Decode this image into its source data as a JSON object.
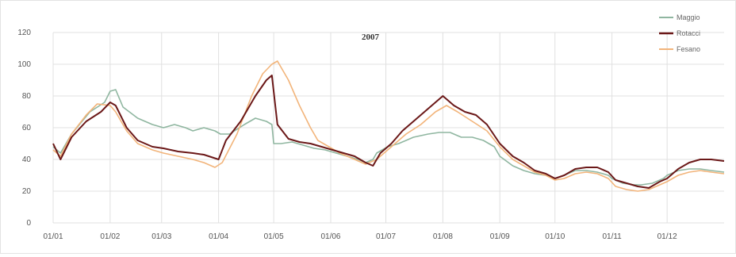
{
  "chart_data": {
    "type": "line",
    "title": "2007",
    "xlabel": "",
    "ylabel": "",
    "ylim": [
      0,
      120
    ],
    "yticks": [
      0,
      20,
      40,
      60,
      80,
      100,
      120
    ],
    "xlim": [
      0,
      365
    ],
    "xticks": [
      {
        "label": "01/01",
        "day": 0
      },
      {
        "label": "01/02",
        "day": 31
      },
      {
        "label": "01/03",
        "day": 59
      },
      {
        "label": "01/04",
        "day": 90
      },
      {
        "label": "01/05",
        "day": 120
      },
      {
        "label": "01/06",
        "day": 151
      },
      {
        "label": "01/07",
        "day": 181
      },
      {
        "label": "01/08",
        "day": 212
      },
      {
        "label": "01/09",
        "day": 243
      },
      {
        "label": "01/10",
        "day": 273
      },
      {
        "label": "01/11",
        "day": 304
      },
      {
        "label": "01/12",
        "day": 334
      }
    ],
    "grid": true,
    "legend_position": "top-right",
    "series": [
      {
        "name": "Maggio",
        "color": "#8fb6a0",
        "points": [
          [
            0,
            48
          ],
          [
            4,
            44
          ],
          [
            10,
            56
          ],
          [
            20,
            70
          ],
          [
            28,
            76
          ],
          [
            31,
            83
          ],
          [
            34,
            84
          ],
          [
            38,
            73
          ],
          [
            46,
            66
          ],
          [
            54,
            62
          ],
          [
            60,
            60
          ],
          [
            66,
            62
          ],
          [
            72,
            60
          ],
          [
            76,
            58
          ],
          [
            82,
            60
          ],
          [
            88,
            58
          ],
          [
            91,
            56
          ],
          [
            96,
            56
          ],
          [
            104,
            62
          ],
          [
            110,
            66
          ],
          [
            116,
            64
          ],
          [
            119,
            62
          ],
          [
            120,
            50
          ],
          [
            124,
            50
          ],
          [
            130,
            51
          ],
          [
            136,
            49
          ],
          [
            142,
            47
          ],
          [
            148,
            46
          ],
          [
            154,
            44
          ],
          [
            160,
            42
          ],
          [
            166,
            40
          ],
          [
            170,
            38
          ],
          [
            174,
            40
          ],
          [
            176,
            44
          ],
          [
            182,
            48
          ],
          [
            188,
            50
          ],
          [
            196,
            54
          ],
          [
            204,
            56
          ],
          [
            210,
            57
          ],
          [
            216,
            57
          ],
          [
            222,
            54
          ],
          [
            228,
            54
          ],
          [
            234,
            52
          ],
          [
            240,
            48
          ],
          [
            243,
            42
          ],
          [
            250,
            36
          ],
          [
            256,
            33
          ],
          [
            262,
            31
          ],
          [
            268,
            30
          ],
          [
            273,
            28
          ],
          [
            278,
            30
          ],
          [
            284,
            33
          ],
          [
            290,
            33
          ],
          [
            296,
            32
          ],
          [
            302,
            30
          ],
          [
            304,
            28
          ],
          [
            310,
            25
          ],
          [
            316,
            24
          ],
          [
            320,
            24
          ],
          [
            326,
            25
          ],
          [
            332,
            28
          ],
          [
            334,
            30
          ],
          [
            340,
            33
          ],
          [
            346,
            34
          ],
          [
            352,
            34
          ],
          [
            358,
            33
          ],
          [
            365,
            32
          ]
        ]
      },
      {
        "name": "Rotacci",
        "color": "#6b1818",
        "points": [
          [
            0,
            50
          ],
          [
            4,
            40
          ],
          [
            10,
            54
          ],
          [
            18,
            64
          ],
          [
            26,
            70
          ],
          [
            31,
            76
          ],
          [
            34,
            74
          ],
          [
            40,
            60
          ],
          [
            46,
            52
          ],
          [
            54,
            48
          ],
          [
            60,
            47
          ],
          [
            68,
            45
          ],
          [
            76,
            44
          ],
          [
            82,
            43
          ],
          [
            90,
            40
          ],
          [
            94,
            52
          ],
          [
            102,
            64
          ],
          [
            110,
            80
          ],
          [
            116,
            90
          ],
          [
            119,
            93
          ],
          [
            122,
            62
          ],
          [
            128,
            53
          ],
          [
            134,
            51
          ],
          [
            140,
            50
          ],
          [
            146,
            48
          ],
          [
            152,
            46
          ],
          [
            158,
            44
          ],
          [
            164,
            42
          ],
          [
            170,
            38
          ],
          [
            174,
            36
          ],
          [
            178,
            44
          ],
          [
            184,
            50
          ],
          [
            190,
            58
          ],
          [
            196,
            64
          ],
          [
            202,
            70
          ],
          [
            208,
            76
          ],
          [
            212,
            80
          ],
          [
            218,
            74
          ],
          [
            224,
            70
          ],
          [
            230,
            68
          ],
          [
            236,
            62
          ],
          [
            243,
            50
          ],
          [
            250,
            42
          ],
          [
            256,
            38
          ],
          [
            262,
            33
          ],
          [
            268,
            31
          ],
          [
            273,
            28
          ],
          [
            278,
            30
          ],
          [
            284,
            34
          ],
          [
            290,
            35
          ],
          [
            296,
            35
          ],
          [
            302,
            32
          ],
          [
            306,
            27
          ],
          [
            312,
            25
          ],
          [
            318,
            23
          ],
          [
            324,
            22
          ],
          [
            330,
            26
          ],
          [
            334,
            28
          ],
          [
            340,
            34
          ],
          [
            346,
            38
          ],
          [
            352,
            40
          ],
          [
            358,
            40
          ],
          [
            365,
            39
          ]
        ]
      },
      {
        "name": "Fesano",
        "color": "#f2b47a",
        "points": [
          [
            0,
            46
          ],
          [
            4,
            42
          ],
          [
            10,
            56
          ],
          [
            18,
            68
          ],
          [
            24,
            75
          ],
          [
            31,
            74
          ],
          [
            34,
            70
          ],
          [
            40,
            58
          ],
          [
            46,
            50
          ],
          [
            54,
            46
          ],
          [
            60,
            44
          ],
          [
            68,
            42
          ],
          [
            76,
            40
          ],
          [
            82,
            38
          ],
          [
            88,
            35
          ],
          [
            92,
            38
          ],
          [
            100,
            56
          ],
          [
            108,
            80
          ],
          [
            114,
            94
          ],
          [
            119,
            100
          ],
          [
            122,
            102
          ],
          [
            128,
            90
          ],
          [
            134,
            74
          ],
          [
            140,
            60
          ],
          [
            144,
            52
          ],
          [
            150,
            48
          ],
          [
            156,
            44
          ],
          [
            164,
            40
          ],
          [
            170,
            37
          ],
          [
            176,
            40
          ],
          [
            184,
            48
          ],
          [
            192,
            56
          ],
          [
            200,
            62
          ],
          [
            208,
            70
          ],
          [
            214,
            74
          ],
          [
            220,
            70
          ],
          [
            228,
            64
          ],
          [
            236,
            58
          ],
          [
            243,
            48
          ],
          [
            250,
            40
          ],
          [
            256,
            36
          ],
          [
            262,
            32
          ],
          [
            268,
            30
          ],
          [
            273,
            27
          ],
          [
            278,
            28
          ],
          [
            284,
            31
          ],
          [
            290,
            32
          ],
          [
            296,
            31
          ],
          [
            302,
            28
          ],
          [
            306,
            23
          ],
          [
            312,
            21
          ],
          [
            318,
            20
          ],
          [
            324,
            21
          ],
          [
            330,
            24
          ],
          [
            334,
            26
          ],
          [
            340,
            30
          ],
          [
            346,
            32
          ],
          [
            352,
            33
          ],
          [
            358,
            32
          ],
          [
            365,
            31
          ]
        ]
      }
    ]
  }
}
